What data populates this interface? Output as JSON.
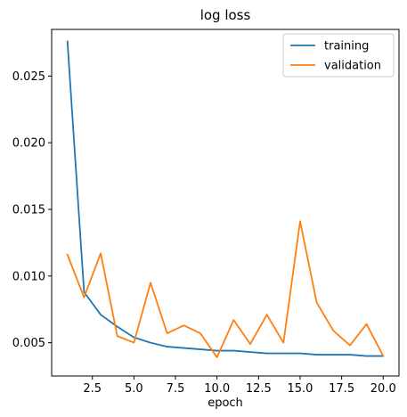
{
  "chart_data": {
    "type": "line",
    "title": "log loss",
    "xlabel": "epoch",
    "ylabel": "",
    "x": [
      1,
      2,
      3,
      4,
      5,
      6,
      7,
      8,
      9,
      10,
      11,
      12,
      13,
      14,
      15,
      16,
      17,
      18,
      19,
      20
    ],
    "xlim": [
      0.05,
      20.95
    ],
    "ylim": [
      0.0025,
      0.0285
    ],
    "xticks": [
      2.5,
      5.0,
      7.5,
      10.0,
      12.5,
      15.0,
      17.5,
      20.0
    ],
    "xtick_labels": [
      "2.5",
      "5.0",
      "7.5",
      "10.0",
      "12.5",
      "15.0",
      "17.5",
      "20.0"
    ],
    "yticks": [
      0.005,
      0.01,
      0.015,
      0.02,
      0.025
    ],
    "ytick_labels": [
      "0.005",
      "0.010",
      "0.015",
      "0.020",
      "0.025"
    ],
    "grid": false,
    "legend_position": "top-right",
    "series": [
      {
        "name": "training",
        "color": "#1f77b4",
        "values": [
          0.0276,
          0.0088,
          0.0071,
          0.0062,
          0.0054,
          0.005,
          0.0047,
          0.0046,
          0.0045,
          0.0044,
          0.0044,
          0.0043,
          0.0042,
          0.0042,
          0.0042,
          0.0041,
          0.0041,
          0.0041,
          0.004,
          0.004
        ]
      },
      {
        "name": "validation",
        "color": "#ff7f0e",
        "values": [
          0.0116,
          0.0084,
          0.0117,
          0.0055,
          0.005,
          0.0095,
          0.0057,
          0.0063,
          0.0057,
          0.0039,
          0.0067,
          0.0049,
          0.0071,
          0.005,
          0.0141,
          0.008,
          0.0059,
          0.0048,
          0.0064,
          0.004
        ]
      }
    ]
  }
}
